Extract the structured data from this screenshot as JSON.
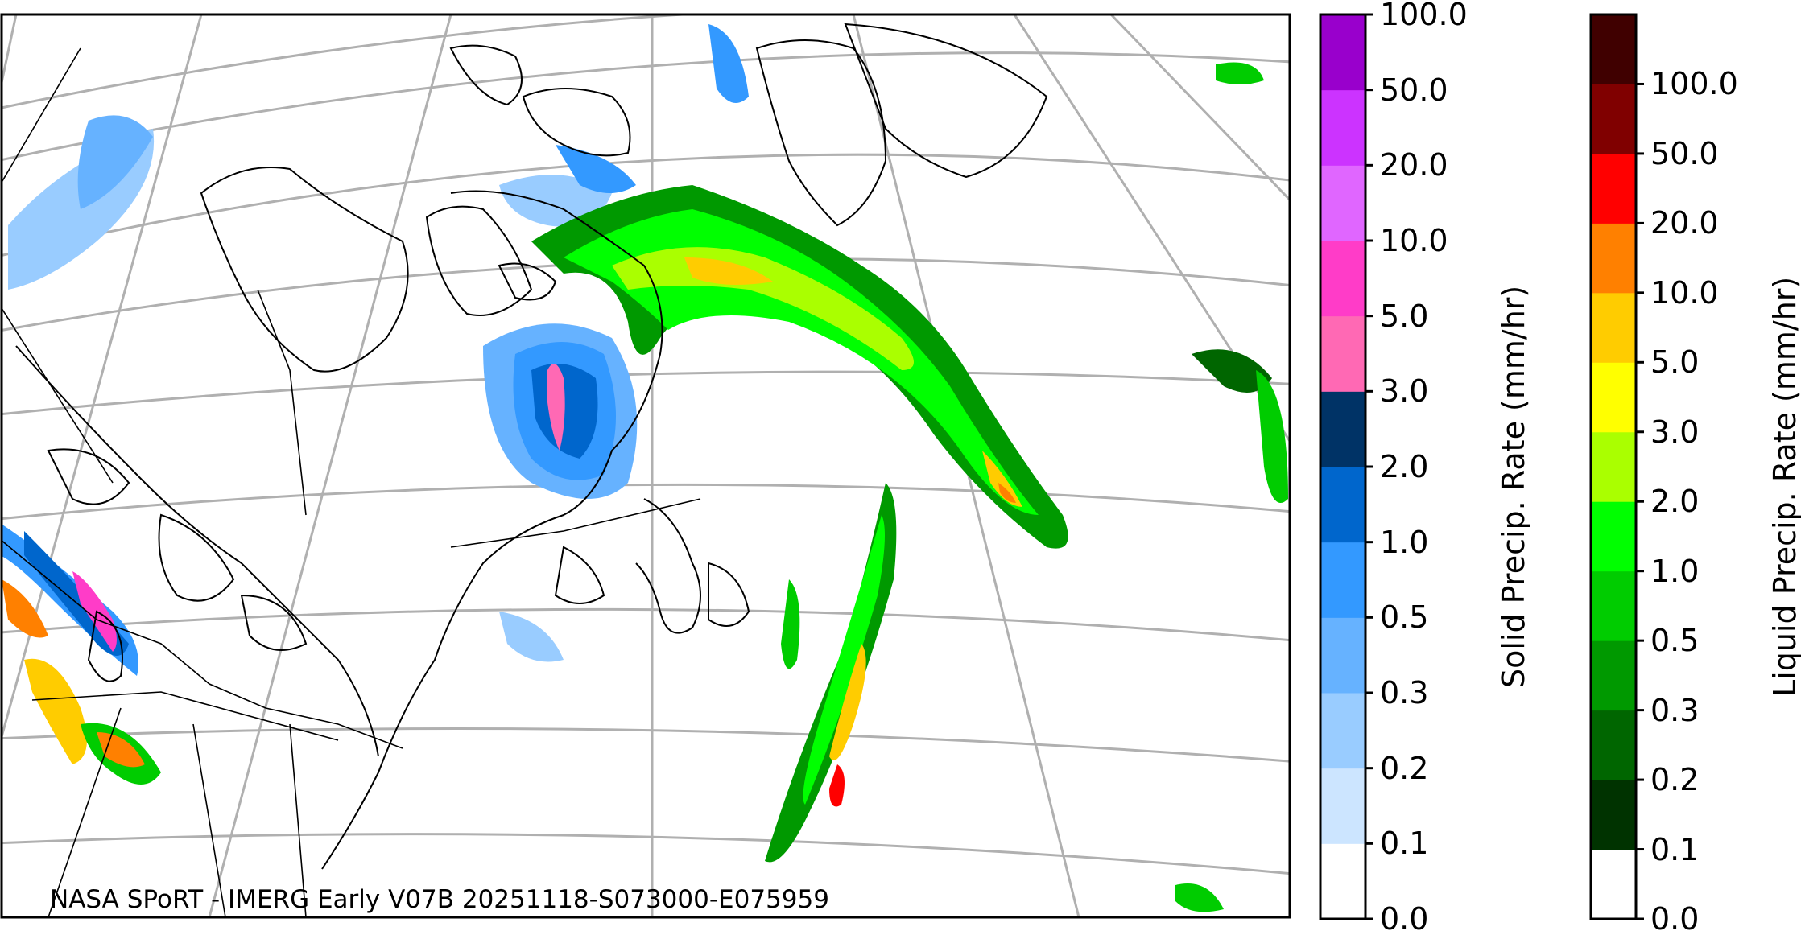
{
  "credit": "NASA SPoRT - IMERG Early V07B 20251118-S073000-E075959",
  "solid_colorbar": {
    "title": "Solid Precip. Rate (mm/hr)",
    "ticks": [
      "0.0",
      "0.1",
      "0.2",
      "0.3",
      "0.5",
      "1.0",
      "2.0",
      "3.0",
      "5.0",
      "10.0",
      "20.0",
      "50.0",
      "100.0"
    ],
    "colors": [
      "#ffffff",
      "#cce5ff",
      "#99ccff",
      "#66b2ff",
      "#3399ff",
      "#0066cc",
      "#003366",
      "#ff69b4",
      "#ff3cc8",
      "#e066ff",
      "#cc33ff",
      "#9900cc"
    ]
  },
  "liquid_colorbar": {
    "title": "Liquid Precip. Rate (mm/hr)",
    "ticks": [
      "0.0",
      "0.1",
      "0.2",
      "0.3",
      "0.5",
      "1.0",
      "2.0",
      "3.0",
      "5.0",
      "10.0",
      "20.0",
      "50.0",
      "100.0"
    ],
    "colors": [
      "#ffffff",
      "#003300",
      "#006600",
      "#009900",
      "#00cc00",
      "#00ff00",
      "#aaff00",
      "#ffff00",
      "#ffcc00",
      "#ff8000",
      "#ff0000",
      "#800000",
      "#400000"
    ]
  }
}
